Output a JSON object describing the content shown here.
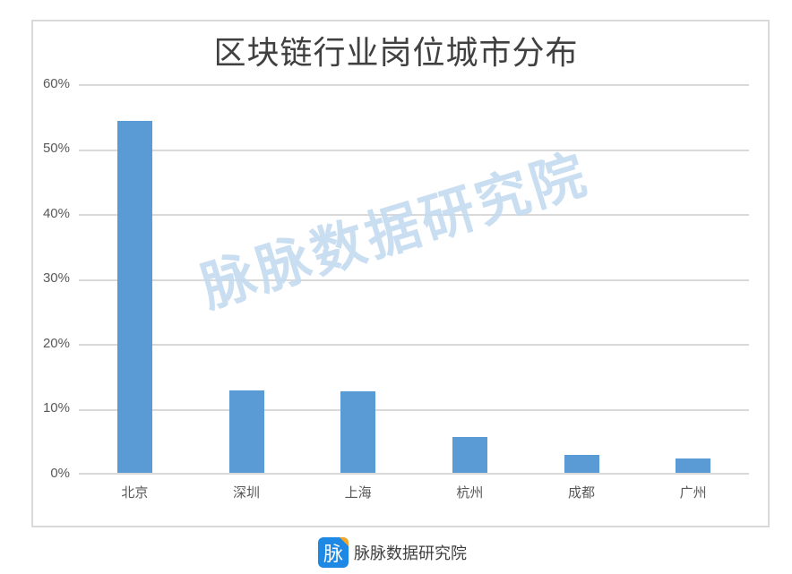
{
  "chart_data": {
    "type": "bar",
    "title": "区块链行业岗位城市分布",
    "categories": [
      "北京",
      "深圳",
      "上海",
      "杭州",
      "成都",
      "广州"
    ],
    "values": [
      54.2,
      12.7,
      12.6,
      5.5,
      2.8,
      2.2
    ],
    "unit": "%",
    "xlabel": "",
    "ylabel": "",
    "ylim": [
      0,
      60
    ],
    "yticks": [
      "0%",
      "10%",
      "20%",
      "30%",
      "40%",
      "50%",
      "60%"
    ],
    "grid": true,
    "legend": null,
    "bar_color": "#5b9bd5"
  },
  "watermark": "脉脉数据研究院",
  "footer": {
    "logo_glyph": "脉",
    "text": "脉脉数据研究院"
  }
}
